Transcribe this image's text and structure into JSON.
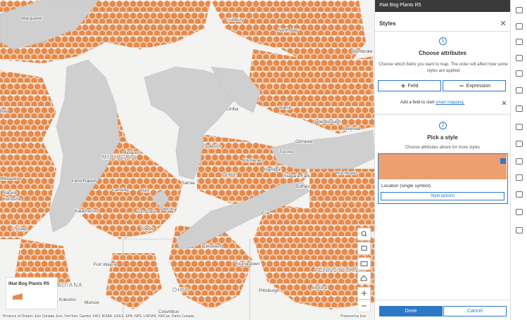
{
  "layer_header": {
    "title": "INat Bog Plants R5"
  },
  "panel": {
    "title": "Styles",
    "step1": {
      "number": "1",
      "title": "Choose attributes",
      "description": "Choose which fields you want to map. The order will affect how some styles are applied",
      "field_button": "Field",
      "expression_button": "Expression",
      "notice_prefix": "Add a field to start",
      "notice_link": "smart mapping."
    },
    "step2": {
      "number": "2",
      "title": "Pick a style",
      "description": "Choose attributes above for more styles",
      "style_card": {
        "label": "Location (single symbol)",
        "options_button": "Style options"
      }
    },
    "done_button": "Done",
    "cancel_button": "Cancel"
  },
  "legend": {
    "title": "INat Bog Plants R5"
  },
  "map": {
    "labels": [
      "Marquette",
      "Sudbury",
      "North Bay",
      "Pembroke",
      "Bay",
      "Orillia",
      "Barrie",
      "Peterborough",
      "Belleville",
      "Oshawa",
      "Toronto",
      "Kitchener",
      "Hamilton",
      "London",
      "Niagara Falls",
      "Buffalo",
      "Rochester",
      "Goderich",
      "Sarnia",
      "Midland",
      "MICHIGAN",
      "Milwaukee",
      "Racine",
      "Kenosha",
      "Chicago",
      "Grand Rapids",
      "Lansing",
      "Flint",
      "Kalamazoo",
      "Ann Arbor",
      "Detroit",
      "Toledo",
      "Fort Wayne",
      "Cleveland",
      "Youngstown",
      "Pittsburgh",
      "OHIO",
      "Columbus",
      "INDIANA",
      "Kokomo",
      "Muncie",
      "PENNSYLVANIA",
      "Altoona",
      "Erie"
    ],
    "attribution": "Province of Ontario, Esri Canada, Esri, TomTom, Garmin, FAO, NOAA, USGS, EPA, NPS, USFWS, NRCan, Parks Canada",
    "powered_by": "Powered by Esri"
  }
}
